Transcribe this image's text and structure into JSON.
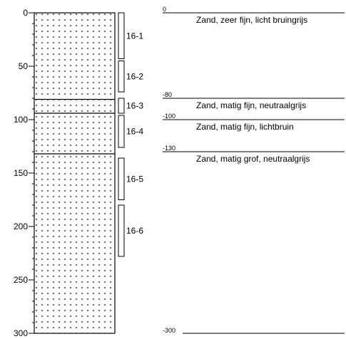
{
  "depth_axis": {
    "min": 0,
    "max": 300,
    "ticks": [
      {
        "value": 0,
        "label": "0"
      },
      {
        "value": 50,
        "label": "50"
      },
      {
        "value": 100,
        "label": "100"
      },
      {
        "value": 150,
        "label": "150"
      },
      {
        "value": 200,
        "label": "200"
      },
      {
        "value": 250,
        "label": "250"
      },
      {
        "value": 300,
        "label": "300"
      }
    ]
  },
  "column": {
    "boundaries": [
      81,
      94,
      132
    ],
    "pattern": "fine sand dots"
  },
  "samples": [
    {
      "label": "16-1",
      "from": 0,
      "to": 43
    },
    {
      "label": "16-2",
      "from": 45,
      "to": 74
    },
    {
      "label": "16-3",
      "from": 80,
      "to": 94
    },
    {
      "label": "16-4",
      "from": 96,
      "to": 126
    },
    {
      "label": "16-5",
      "from": 136,
      "to": 175
    },
    {
      "label": "16-6",
      "from": 180,
      "to": 228
    }
  ],
  "layers": [
    {
      "top": "0",
      "top_depth": 0,
      "description": "Zand, zeer fijn, licht bruingrijs"
    },
    {
      "top": "-80",
      "top_depth": 80,
      "description": "Zand, matig fijn, neutraalgrijs"
    },
    {
      "top": "-100",
      "top_depth": 100,
      "description": "Zand, matig fijn, lichtbruin"
    },
    {
      "top": "-130",
      "top_depth": 130,
      "description": "Zand, matig grof, neutraalgrijs"
    }
  ],
  "base": {
    "label": "-300",
    "depth": 300
  }
}
